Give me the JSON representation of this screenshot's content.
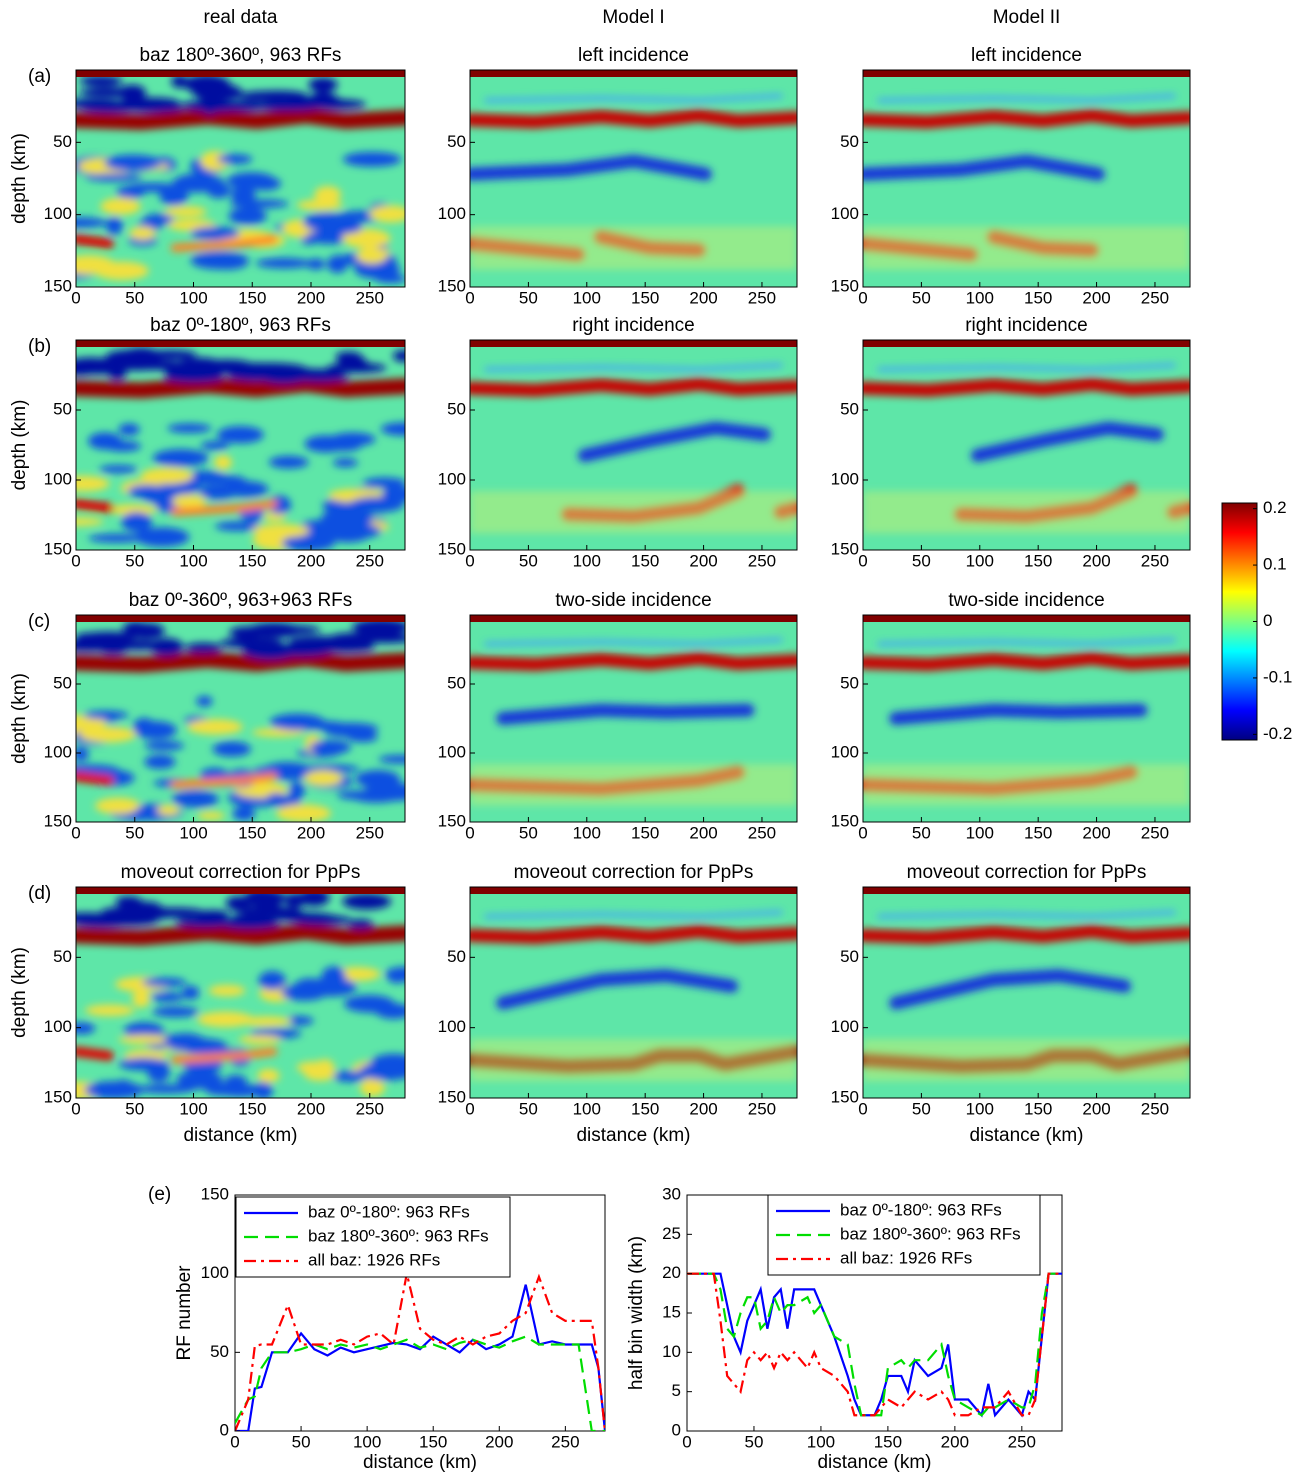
{
  "heatmaps": {
    "column_titles": [
      "real data",
      "Model I",
      "Model II"
    ],
    "rows": [
      {
        "label": "(a)",
        "titles": [
          "baz 180º-360º, 963 RFs",
          "left incidence",
          "left incidence"
        ]
      },
      {
        "label": "(b)",
        "titles": [
          "baz 0º-180º, 963 RFs",
          "right incidence",
          "right incidence"
        ]
      },
      {
        "label": "(c)",
        "titles": [
          "baz 0º-360º, 963+963 RFs",
          "two-side incidence",
          "two-side incidence"
        ]
      },
      {
        "label": "(d)",
        "titles": [
          "moveout correction for PpPs",
          "moveout correction for PpPs",
          "moveout correction for PpPs"
        ]
      }
    ],
    "xlim": [
      0,
      280
    ],
    "xticks": [
      0,
      50,
      100,
      150,
      200,
      250
    ],
    "ylim": [
      0,
      150
    ],
    "yticks": [
      50,
      100,
      150
    ],
    "xlabel": "distance (km)",
    "ylabel": "depth (km)",
    "colorbar": {
      "clim": [
        -0.21,
        0.21
      ],
      "ticks": [
        0.2,
        0.1,
        0,
        -0.1,
        -0.2
      ]
    }
  },
  "bottom_label": "(e)",
  "chart_data": [
    {
      "type": "line",
      "xlabel": "distance (km)",
      "ylabel": "RF number",
      "xlim": [
        0,
        280
      ],
      "xticks": [
        0,
        50,
        100,
        150,
        200,
        250
      ],
      "ylim": [
        0,
        150
      ],
      "yticks": [
        0,
        50,
        100,
        150
      ],
      "x": [
        0,
        10,
        15,
        20,
        28,
        40,
        50,
        60,
        70,
        80,
        90,
        100,
        110,
        120,
        130,
        140,
        150,
        160,
        170,
        180,
        190,
        200,
        210,
        220,
        230,
        240,
        250,
        260,
        270,
        275,
        280
      ],
      "series": [
        {
          "name": "baz 0º-180º: 963 RFs",
          "color": "#0000ff",
          "dash": "solid",
          "values": [
            0,
            0,
            27,
            28,
            50,
            50,
            62,
            52,
            48,
            53,
            50,
            52,
            54,
            56,
            55,
            52,
            60,
            55,
            50,
            58,
            52,
            55,
            60,
            93,
            55,
            57,
            55,
            55,
            55,
            40,
            0
          ]
        },
        {
          "name": "baz 180º-360º: 963 RFs",
          "color": "#00dd00",
          "dash": "dash",
          "values": [
            5,
            20,
            22,
            40,
            50,
            50,
            52,
            55,
            52,
            55,
            53,
            55,
            52,
            55,
            58,
            53,
            55,
            52,
            56,
            58,
            55,
            53,
            57,
            60,
            55,
            55,
            55,
            55,
            0,
            0,
            0
          ]
        },
        {
          "name": "all baz: 1926 RFs",
          "color": "#ff0000",
          "dash": "dashdot",
          "values": [
            0,
            20,
            54,
            55,
            55,
            80,
            55,
            55,
            55,
            58,
            55,
            60,
            62,
            55,
            100,
            65,
            58,
            55,
            60,
            55,
            60,
            62,
            70,
            75,
            98,
            75,
            70,
            70,
            70,
            40,
            0
          ]
        }
      ]
    },
    {
      "type": "line",
      "xlabel": "distance (km)",
      "ylabel": "half bin width (km)",
      "xlim": [
        0,
        280
      ],
      "xticks": [
        0,
        50,
        100,
        150,
        200,
        250
      ],
      "ylim": [
        0,
        30
      ],
      "yticks": [
        0,
        5,
        10,
        15,
        20,
        25,
        30
      ],
      "x": [
        0,
        10,
        20,
        25,
        30,
        35,
        40,
        45,
        50,
        55,
        60,
        65,
        70,
        75,
        80,
        90,
        95,
        100,
        110,
        120,
        125,
        130,
        140,
        145,
        150,
        160,
        165,
        170,
        180,
        190,
        195,
        200,
        210,
        220,
        225,
        230,
        240,
        250,
        255,
        260,
        265,
        270,
        280
      ],
      "series": [
        {
          "name": "baz 0º-180º: 963 RFs",
          "color": "#0000ff",
          "dash": "solid",
          "values": [
            20,
            20,
            20,
            20,
            16,
            12,
            10,
            14,
            16,
            18,
            13,
            17,
            18,
            13,
            18,
            18,
            18,
            16,
            12,
            7,
            4,
            2,
            2,
            4,
            7,
            7,
            5,
            9,
            7,
            8,
            11,
            4,
            4,
            2,
            6,
            2,
            4,
            2,
            5,
            4,
            12,
            20,
            20
          ]
        },
        {
          "name": "baz 180º-360º: 963 RFs",
          "color": "#00dd00",
          "dash": "dash",
          "values": [
            20,
            20,
            20,
            18,
            13,
            12,
            15,
            17,
            17,
            13,
            14,
            17,
            15,
            16,
            16,
            17,
            15,
            16,
            12,
            11,
            6,
            2,
            2,
            2,
            8,
            9,
            8,
            9,
            9,
            11,
            7,
            4,
            3,
            2,
            3,
            3,
            4,
            3,
            3,
            6,
            15,
            20,
            20
          ]
        },
        {
          "name": "all baz: 1926 RFs",
          "color": "#ff0000",
          "dash": "dashdot",
          "values": [
            20,
            20,
            20,
            14,
            7,
            6,
            5,
            9,
            10,
            9,
            10,
            8,
            10,
            9,
            10,
            8,
            10,
            8,
            7,
            5,
            2,
            2,
            2,
            3,
            4,
            3,
            4,
            5,
            4,
            5,
            4,
            2,
            2,
            3,
            3,
            3,
            5,
            2,
            2,
            4,
            12,
            20,
            20
          ]
        }
      ]
    }
  ]
}
